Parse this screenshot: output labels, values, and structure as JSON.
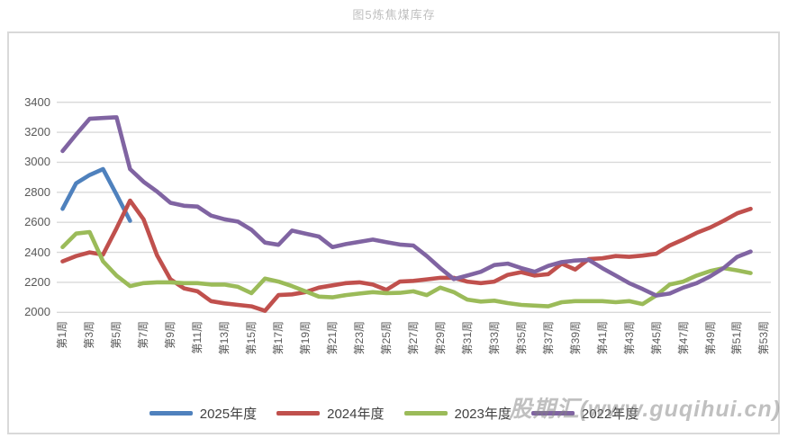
{
  "watermark": {
    "text": "股期汇(www.guqihui.cn)"
  },
  "chart_data": {
    "type": "line",
    "title": "图5炼焦煤库存",
    "xlabel": "",
    "ylabel": "",
    "ylim": [
      2000,
      3400
    ],
    "y_ticks": [
      2000,
      2200,
      2400,
      2600,
      2800,
      3000,
      3200,
      3400
    ],
    "x_range_weeks": [
      1,
      53
    ],
    "x_tick_labels": [
      "第1周",
      "第3周",
      "第5周",
      "第7周",
      "第9周",
      "第11周",
      "第13周",
      "第15周",
      "第17周",
      "第19周",
      "第21周",
      "第23周",
      "第25周",
      "第27周",
      "第29周",
      "第31周",
      "第33周",
      "第35周",
      "第37周",
      "第39周",
      "第41周",
      "第43周",
      "第45周",
      "第47周",
      "第49周",
      "第51周",
      "第53周"
    ],
    "grid": "horizontal",
    "legend_position": "bottom",
    "series": [
      {
        "name": "2025年度",
        "color": "#4F81BD",
        "start_week": 1,
        "values": [
          2690,
          2860,
          2915,
          2955,
          2785,
          2610
        ]
      },
      {
        "name": "2024年度",
        "color": "#C0504D",
        "start_week": 1,
        "values": [
          2340,
          2375,
          2400,
          2385,
          2560,
          2745,
          2620,
          2380,
          2220,
          2160,
          2140,
          2075,
          2060,
          2050,
          2040,
          2010,
          2115,
          2120,
          2135,
          2165,
          2180,
          2195,
          2200,
          2185,
          2150,
          2205,
          2210,
          2220,
          2230,
          2230,
          2205,
          2195,
          2205,
          2250,
          2268,
          2245,
          2255,
          2325,
          2285,
          2355,
          2360,
          2375,
          2370,
          2378,
          2390,
          2445,
          2485,
          2530,
          2565,
          2610,
          2660,
          2690
        ]
      },
      {
        "name": "2023年度",
        "color": "#9BBB59",
        "start_week": 1,
        "values": [
          2435,
          2525,
          2535,
          2340,
          2245,
          2175,
          2195,
          2200,
          2200,
          2195,
          2195,
          2185,
          2185,
          2170,
          2128,
          2225,
          2205,
          2175,
          2140,
          2105,
          2100,
          2115,
          2125,
          2135,
          2128,
          2130,
          2140,
          2115,
          2165,
          2135,
          2085,
          2072,
          2078,
          2062,
          2050,
          2045,
          2040,
          2068,
          2075,
          2075,
          2075,
          2068,
          2075,
          2055,
          2112,
          2185,
          2205,
          2245,
          2275,
          2295,
          2280,
          2262
        ]
      },
      {
        "name": "2022年度",
        "color": "#8064A2",
        "start_week": 1,
        "values": [
          3075,
          3185,
          3290,
          3295,
          3300,
          2955,
          2870,
          2805,
          2730,
          2710,
          2705,
          2645,
          2620,
          2605,
          2550,
          2465,
          2450,
          2545,
          2525,
          2505,
          2435,
          2455,
          2470,
          2485,
          2468,
          2452,
          2445,
          2375,
          2295,
          2222,
          2245,
          2270,
          2315,
          2325,
          2295,
          2270,
          2310,
          2335,
          2345,
          2350,
          2295,
          2245,
          2195,
          2155,
          2112,
          2125,
          2165,
          2195,
          2240,
          2295,
          2370,
          2405
        ]
      }
    ],
    "style": {
      "grid_color": "#D9D9D9",
      "frame_color": "#D9D9D9",
      "tick_label_color": "#595959",
      "title_color": "#BFBFBF"
    }
  }
}
